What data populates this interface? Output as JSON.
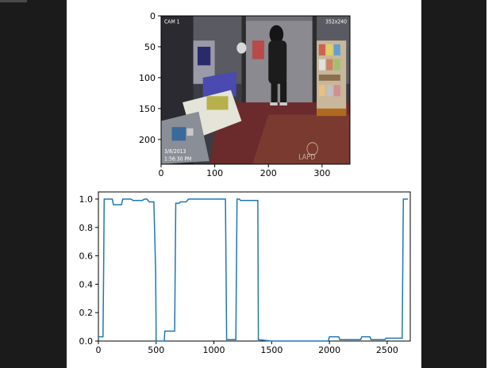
{
  "colors": {
    "background": "#1b1b1b",
    "panel": "#ffffff",
    "line": "#1f77b4",
    "axis": "#000000"
  },
  "frame_image": {
    "overlay_camera": "CAM 1",
    "overlay_resolution": "352x240",
    "overlay_date": "3/8/2013",
    "overlay_time": "1:56:30 PM",
    "overlay_watermark": "LAPD"
  },
  "chart_data": [
    {
      "type": "image",
      "xlim": [
        0,
        352
      ],
      "ylim": [
        240,
        0
      ],
      "x_ticks": [
        0,
        100,
        200,
        300
      ],
      "y_ticks": [
        0,
        50,
        100,
        150,
        200
      ],
      "x_tick_labels": [
        "0",
        "100",
        "200",
        "300"
      ],
      "y_tick_labels": [
        "0",
        "50",
        "100",
        "150",
        "200"
      ]
    },
    {
      "type": "line",
      "xlim": [
        0,
        2700
      ],
      "ylim": [
        0,
        1.05
      ],
      "x_ticks": [
        0,
        500,
        1000,
        1500,
        2000,
        2500
      ],
      "y_ticks": [
        0.0,
        0.2,
        0.4,
        0.6,
        0.8,
        1.0
      ],
      "x_tick_labels": [
        "0",
        "500",
        "1000",
        "1500",
        "2000",
        "2500"
      ],
      "y_tick_labels": [
        "0.0",
        "0.2",
        "0.4",
        "0.6",
        "0.8",
        "1.0"
      ],
      "series": [
        {
          "x": [
            0,
            40,
            45,
            50,
            120,
            130,
            200,
            210,
            280,
            300,
            380,
            400,
            420,
            440,
            480,
            495,
            500,
            570,
            575,
            660,
            670,
            700,
            710,
            760,
            780,
            1000,
            1100,
            1110,
            1190,
            1200,
            1220,
            1230,
            1380,
            1385,
            1500,
            1700,
            1900,
            1990,
            2000,
            2080,
            2090,
            2270,
            2280,
            2350,
            2360,
            2480,
            2490,
            2630,
            2640,
            2680
          ],
          "y": [
            0.03,
            0.03,
            0.5,
            1.0,
            1.0,
            0.96,
            0.96,
            1.0,
            1.0,
            0.99,
            0.99,
            1.0,
            1.0,
            0.98,
            0.98,
            0.5,
            0.0,
            0.0,
            0.07,
            0.07,
            0.97,
            0.97,
            0.98,
            0.98,
            1.0,
            1.0,
            1.0,
            0.01,
            0.01,
            1.0,
            1.0,
            0.99,
            0.99,
            0.01,
            0.0,
            0.0,
            0.0,
            0.0,
            0.03,
            0.03,
            0.01,
            0.01,
            0.03,
            0.03,
            0.01,
            0.01,
            0.02,
            0.02,
            1.0,
            1.0
          ]
        }
      ]
    }
  ]
}
